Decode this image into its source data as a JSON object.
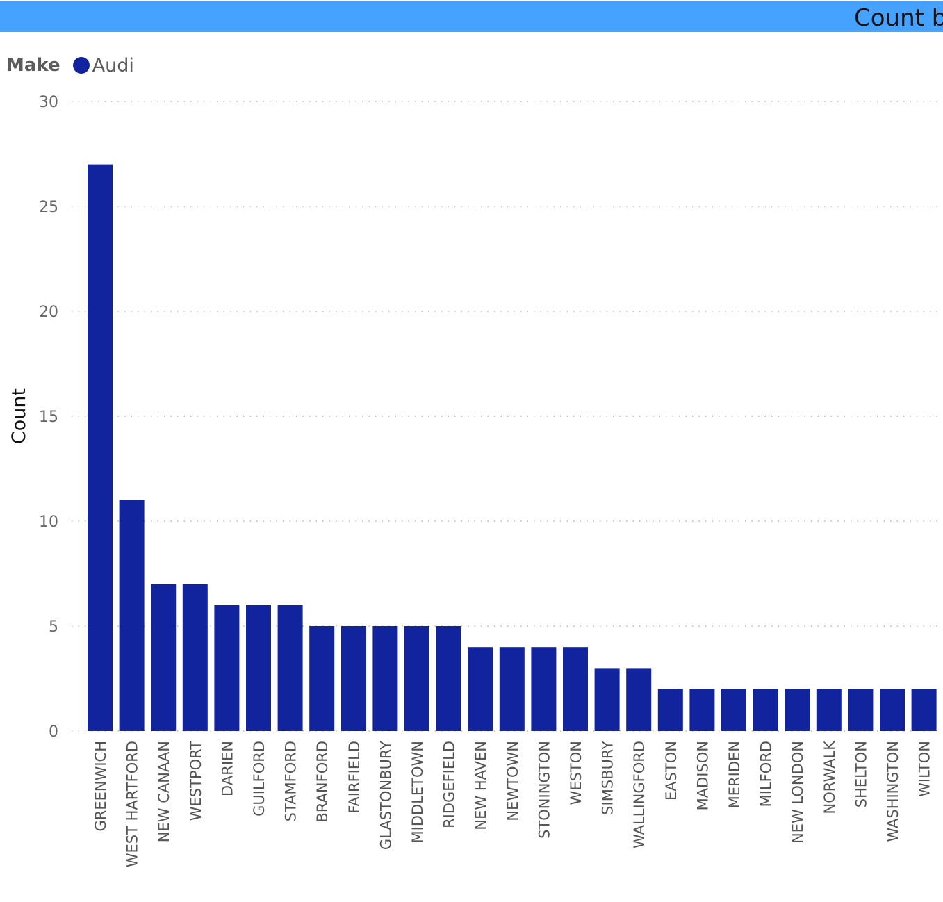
{
  "header": {
    "title": "Count b",
    "bar_color": "#45a3ff"
  },
  "legend": {
    "title": "Make",
    "items": [
      {
        "label": "Audi",
        "color": "#12239e"
      }
    ]
  },
  "chart_data": {
    "type": "bar",
    "categories": [
      "GREENWICH",
      "WEST HARTFORD",
      "NEW CANAAN",
      "WESTPORT",
      "DARIEN",
      "GUILFORD",
      "STAMFORD",
      "BRANFORD",
      "FAIRFIELD",
      "GLASTONBURY",
      "MIDDLETOWN",
      "RIDGEFIELD",
      "NEW HAVEN",
      "NEWTOWN",
      "STONINGTON",
      "WESTON",
      "SIMSBURY",
      "WALLINGFORD",
      "EASTON",
      "MADISON",
      "MERIDEN",
      "MILFORD",
      "NEW LONDON",
      "NORWALK",
      "SHELTON",
      "WASHINGTON",
      "WILTON"
    ],
    "series": [
      {
        "name": "Audi",
        "values": [
          27,
          11,
          7,
          7,
          6,
          6,
          6,
          5,
          5,
          5,
          5,
          5,
          4,
          4,
          4,
          4,
          3,
          3,
          2,
          2,
          2,
          2,
          2,
          2,
          2,
          2,
          2
        ],
        "color": "#12239e"
      }
    ],
    "yticks": [
      "0",
      "5",
      "10",
      "15",
      "20",
      "25",
      "30"
    ],
    "ylabel": "Count",
    "xlabel": "",
    "ylim": [
      0,
      30
    ],
    "grid": "dotted-horizontal",
    "legend_placement": "top-left"
  }
}
